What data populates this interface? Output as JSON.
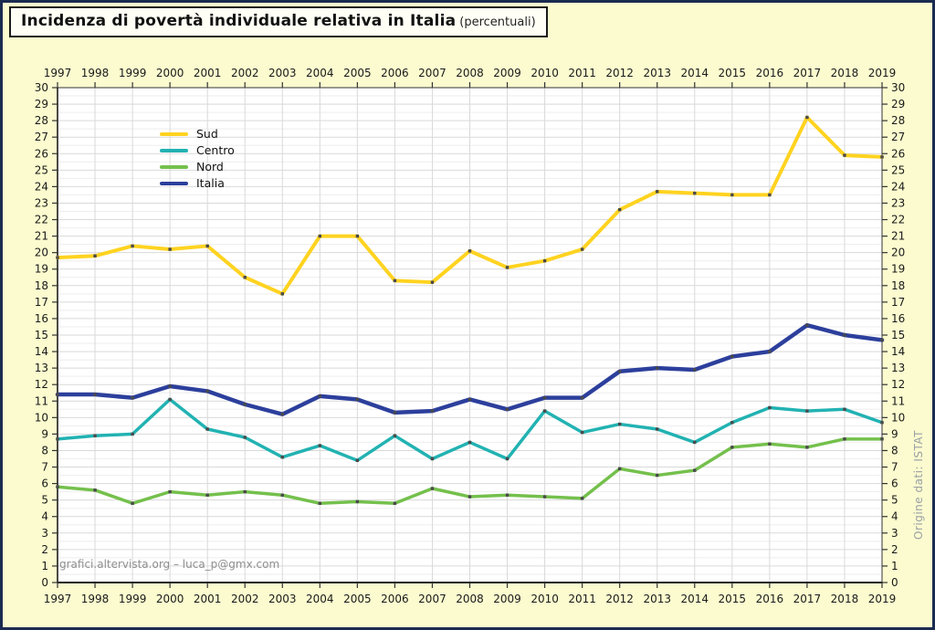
{
  "window": {
    "background": "#FBFBCF",
    "border_color": "#1B2B50",
    "plot_background": "#FFFFFF",
    "major_gridline_color": "#D9D9D9",
    "minor_gridline_color": "#EEEEEE",
    "axis_color": "#1A1A1A",
    "marker_color": "#4A4A4A"
  },
  "title": {
    "text": "Incidenza di povertà individuale relativa in Italia",
    "subtitle": "(percentuali)"
  },
  "watermark": "grafici.altervista.org – luca_p@gmx.com",
  "source_note": "Origine dati: ISTAT",
  "chart_data": {
    "type": "line",
    "x": [
      1997,
      1998,
      1999,
      2000,
      2001,
      2002,
      2003,
      2004,
      2005,
      2006,
      2007,
      2008,
      2009,
      2010,
      2011,
      2012,
      2013,
      2014,
      2015,
      2016,
      2017,
      2018,
      2019
    ],
    "series": [
      {
        "name": "Sud",
        "color": "#FFD320",
        "stroke_width": 4,
        "values": [
          19.7,
          19.8,
          20.4,
          20.2,
          20.4,
          18.5,
          17.5,
          21.0,
          21.0,
          18.3,
          18.2,
          20.1,
          19.1,
          19.5,
          20.2,
          22.6,
          23.7,
          23.6,
          23.5,
          23.5,
          28.2,
          25.9,
          25.8
        ]
      },
      {
        "name": "Centro",
        "color": "#22B2B2",
        "stroke_width": 3.5,
        "values": [
          8.7,
          8.9,
          9.0,
          11.1,
          9.3,
          8.8,
          7.6,
          8.3,
          7.4,
          8.9,
          7.5,
          8.5,
          7.5,
          10.4,
          9.1,
          9.6,
          9.3,
          8.5,
          9.7,
          10.6,
          10.4,
          10.5,
          9.7
        ]
      },
      {
        "name": "Nord",
        "color": "#74C04C",
        "stroke_width": 3.5,
        "values": [
          5.8,
          5.6,
          4.8,
          5.5,
          5.3,
          5.5,
          5.3,
          4.8,
          4.9,
          4.8,
          5.7,
          5.2,
          5.3,
          5.2,
          5.1,
          6.9,
          6.5,
          6.8,
          8.2,
          8.4,
          8.2,
          8.7,
          8.7
        ]
      },
      {
        "name": "Italia",
        "color": "#2C3F9C",
        "stroke_width": 4.5,
        "values": [
          11.4,
          11.4,
          11.2,
          11.9,
          11.6,
          10.8,
          10.2,
          11.3,
          11.1,
          10.3,
          10.4,
          11.1,
          10.5,
          11.2,
          11.2,
          12.8,
          13.0,
          12.9,
          13.7,
          14.0,
          15.6,
          15.0,
          14.7
        ]
      }
    ],
    "title": "Incidenza di povertà individuale relativa in Italia (percentuali)",
    "xlabel": "",
    "ylabel": "",
    "ylim": [
      0,
      30
    ],
    "ytick_step": 1,
    "minor_ytick_step": 0.5,
    "grid": true,
    "x_labels_position": "top-and-bottom",
    "y_labels_position": "left-and-right",
    "legend_position": "upper-left-inside"
  }
}
